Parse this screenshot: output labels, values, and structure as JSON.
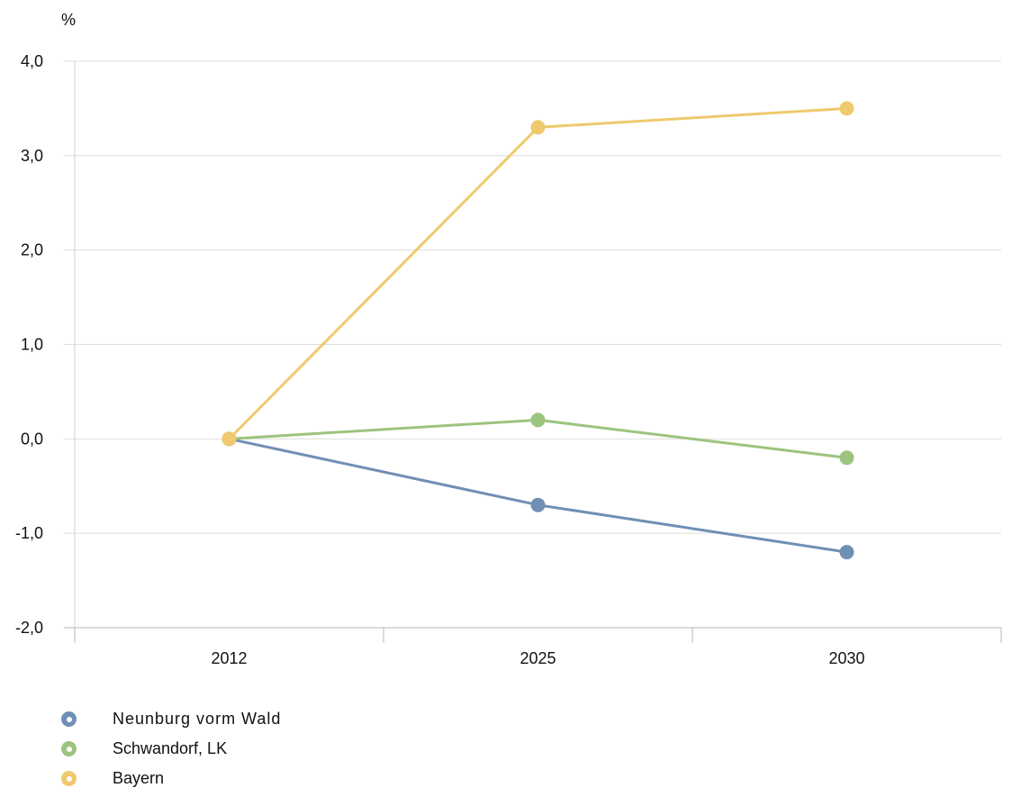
{
  "chart_data": {
    "type": "line",
    "title": "",
    "xlabel": "",
    "ylabel": "%",
    "categories": [
      "2012",
      "2025",
      "2030"
    ],
    "ylim": [
      -2.0,
      4.0
    ],
    "yticks": [
      4.0,
      3.0,
      2.0,
      1.0,
      0.0,
      -1.0,
      -2.0
    ],
    "ytick_labels": [
      "4,0",
      "3,0",
      "2,0",
      "1,0",
      "0,0",
      "-1,0",
      "-2,0"
    ],
    "grid": true,
    "legend_position": "bottom-left",
    "series": [
      {
        "name": "Neunburg vorm Wald",
        "color": "#6f8fb5",
        "values": [
          0.0,
          -0.7,
          -1.2
        ]
      },
      {
        "name": "Schwandorf, LK",
        "color": "#9cc47e",
        "values": [
          0.0,
          0.2,
          -0.2
        ]
      },
      {
        "name": "Bayern",
        "color": "#f0c96e",
        "values": [
          0.0,
          3.3,
          3.5
        ]
      }
    ]
  }
}
